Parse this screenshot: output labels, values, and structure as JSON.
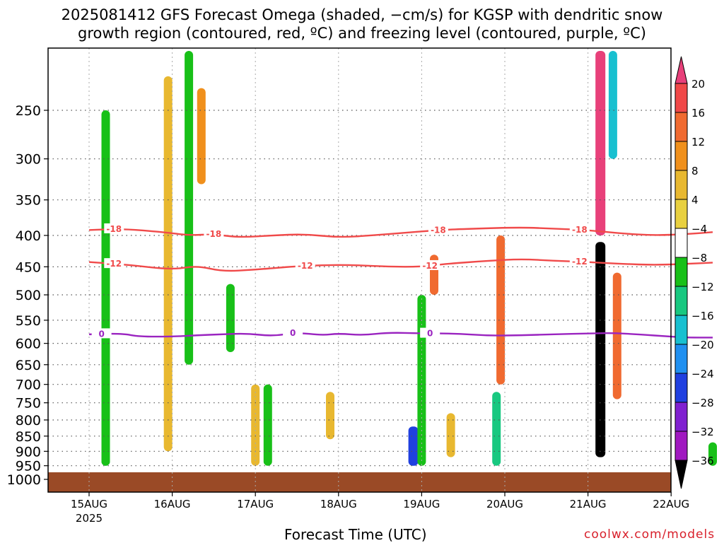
{
  "title": {
    "line1": "2025081412 GFS Forecast Omega (shaded, −cm/s) for KGSP with dendritic snow",
    "line2": "growth region (contoured, red, ºC) and freezing level (contoured, purple, ºC)"
  },
  "credit": "coolwx.com/models",
  "chart_data": {
    "type": "heatmap",
    "title": "2025081412 GFS Forecast Omega (shaded, −cm/s) for KGSP with dendritic snow growth region (contoured, red, ºC) and freezing level (contoured, purple, ºC)",
    "xlabel": "Forecast Time (UTC)",
    "ylabel": "",
    "x_tick_labels": [
      "15AUG",
      "16AUG",
      "17AUG",
      "18AUG",
      "19AUG",
      "20AUG",
      "21AUG",
      "22AUG"
    ],
    "x_tick_sublabel": "2025",
    "y_ticks": [
      250,
      300,
      350,
      400,
      450,
      500,
      550,
      600,
      650,
      700,
      750,
      800,
      850,
      900,
      950,
      1000
    ],
    "ylim": [
      1000,
      200
    ],
    "y_scale": "log-pressure",
    "grid": true,
    "colorbar": {
      "labels": [
        "20",
        "16",
        "12",
        "8",
        "4",
        "−4",
        "−8",
        "−12",
        "−16",
        "−20",
        "−24",
        "−28",
        "−32",
        "−36"
      ],
      "colors": [
        "#e8407a",
        "#f04848",
        "#f06a30",
        "#f0901c",
        "#e8b830",
        "#e8d040",
        "#ffffff",
        "#18c018",
        "#18c880",
        "#18c0d0",
        "#2090f0",
        "#2040e0",
        "#8020d0",
        "#a018c0",
        "#a0a0a0",
        "#000000"
      ]
    },
    "contours": [
      {
        "name": "dendritic snow growth -18",
        "color": "#f04a4a",
        "label": "-18",
        "label_days": [
          0.3,
          1.5,
          4.2,
          5.9
        ],
        "points": [
          [
            0.0,
            392
          ],
          [
            0.4,
            390
          ],
          [
            0.9,
            395
          ],
          [
            1.2,
            400
          ],
          [
            1.5,
            398
          ],
          [
            1.8,
            403
          ],
          [
            2.2,
            400
          ],
          [
            2.6,
            398
          ],
          [
            3.0,
            403
          ],
          [
            3.4,
            400
          ],
          [
            3.8,
            396
          ],
          [
            4.2,
            392
          ],
          [
            4.6,
            390
          ],
          [
            5.2,
            388
          ],
          [
            5.6,
            390
          ],
          [
            6.0,
            392
          ],
          [
            6.4,
            397
          ],
          [
            6.8,
            400
          ],
          [
            7.2,
            398
          ],
          [
            7.5,
            395
          ]
        ]
      },
      {
        "name": "dendritic snow growth -12",
        "color": "#f04a4a",
        "label": "-12",
        "label_days": [
          0.3,
          2.6,
          4.1,
          5.9
        ],
        "points": [
          [
            0.0,
            442
          ],
          [
            0.5,
            447
          ],
          [
            1.0,
            455
          ],
          [
            1.3,
            448
          ],
          [
            1.6,
            458
          ],
          [
            2.0,
            455
          ],
          [
            2.4,
            450
          ],
          [
            2.8,
            447
          ],
          [
            3.2,
            447
          ],
          [
            3.6,
            450
          ],
          [
            4.0,
            450
          ],
          [
            4.3,
            445
          ],
          [
            4.8,
            440
          ],
          [
            5.2,
            437
          ],
          [
            5.6,
            440
          ],
          [
            6.0,
            442
          ],
          [
            6.4,
            445
          ],
          [
            6.8,
            447
          ],
          [
            7.2,
            445
          ],
          [
            7.5,
            443
          ]
        ]
      },
      {
        "name": "freezing level 0",
        "color": "#9a24c0",
        "label": "0",
        "label_days": [
          0.15,
          2.45,
          4.1
        ],
        "points": [
          [
            0.0,
            580
          ],
          [
            0.4,
            578
          ],
          [
            0.6,
            585
          ],
          [
            1.0,
            585
          ],
          [
            1.3,
            582
          ],
          [
            1.6,
            580
          ],
          [
            1.9,
            578
          ],
          [
            2.2,
            584
          ],
          [
            2.5,
            576
          ],
          [
            2.8,
            582
          ],
          [
            3.0,
            578
          ],
          [
            3.3,
            582
          ],
          [
            3.6,
            576
          ],
          [
            4.0,
            578
          ],
          [
            4.4,
            578
          ],
          [
            4.8,
            583
          ],
          [
            5.2,
            582
          ],
          [
            5.6,
            580
          ],
          [
            6.0,
            578
          ],
          [
            6.3,
            577
          ],
          [
            6.6,
            580
          ],
          [
            7.0,
            585
          ],
          [
            7.2,
            587
          ],
          [
            7.5,
            587
          ]
        ]
      }
    ],
    "omega_features": [
      {
        "day": 0.2,
        "p_top": 820,
        "p_bot": 950,
        "value": -14
      },
      {
        "day": 0.2,
        "p_top": 250,
        "p_bot": 950,
        "value": -8
      },
      {
        "day": 0.95,
        "p_top": 220,
        "p_bot": 900,
        "value": 6
      },
      {
        "day": 1.2,
        "p_top": 200,
        "p_bot": 650,
        "value": -8
      },
      {
        "day": 1.35,
        "p_top": 230,
        "p_bot": 330,
        "value": 12
      },
      {
        "day": 1.7,
        "p_top": 480,
        "p_bot": 620,
        "value": -8
      },
      {
        "day": 2.0,
        "p_top": 700,
        "p_bot": 950,
        "value": 6
      },
      {
        "day": 2.15,
        "p_top": 700,
        "p_bot": 950,
        "value": -10
      },
      {
        "day": 2.9,
        "p_top": 720,
        "p_bot": 860,
        "value": 8
      },
      {
        "day": 3.9,
        "p_top": 820,
        "p_bot": 950,
        "value": -26
      },
      {
        "day": 4.0,
        "p_top": 500,
        "p_bot": 950,
        "value": -10
      },
      {
        "day": 4.15,
        "p_top": 430,
        "p_bot": 500,
        "value": 16
      },
      {
        "day": 4.35,
        "p_top": 780,
        "p_bot": 920,
        "value": 8
      },
      {
        "day": 4.95,
        "p_top": 400,
        "p_bot": 700,
        "value": 16
      },
      {
        "day": 4.9,
        "p_top": 720,
        "p_bot": 950,
        "value": -12
      },
      {
        "day": 6.15,
        "p_top": 200,
        "p_bot": 400,
        "value": 20
      },
      {
        "day": 6.15,
        "p_top": 410,
        "p_bot": 920,
        "value": -36
      },
      {
        "day": 6.3,
        "p_top": 200,
        "p_bot": 300,
        "value": -16
      },
      {
        "day": 6.35,
        "p_top": 460,
        "p_bot": 740,
        "value": 16
      },
      {
        "day": 7.5,
        "p_top": 870,
        "p_bot": 950,
        "value": -8
      }
    ]
  }
}
